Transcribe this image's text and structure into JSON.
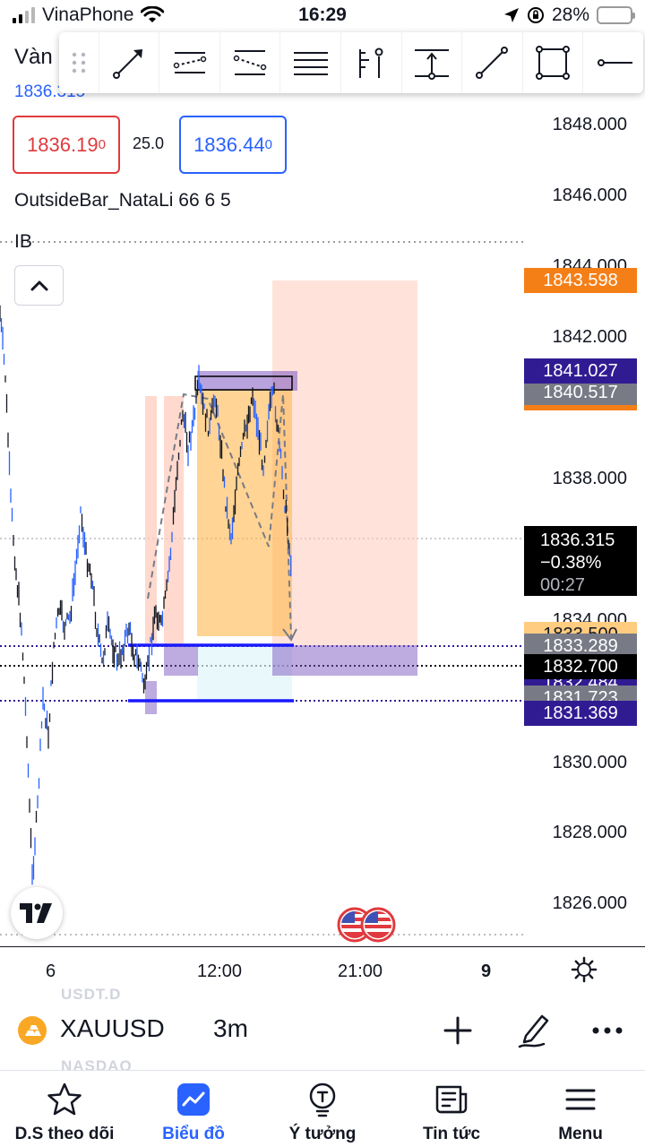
{
  "status_bar": {
    "carrier": "VinaPhone",
    "time": "16:29",
    "battery": "28%"
  },
  "symbol_header": {
    "title": "Vàn",
    "price": "1836.315"
  },
  "drawing_toolbar": {
    "tools": [
      "trend-line-icon",
      "parallel-channel-icon",
      "regression-trend-icon",
      "horizontal-lines-icon",
      "long-position-icon",
      "price-range-icon",
      "line-segment-icon",
      "rectangle-icon",
      "horizontal-ray-icon"
    ]
  },
  "quote": {
    "sell_main": "1836.19",
    "sell_sup": "0",
    "spread": "25.0",
    "buy_main": "1836.44",
    "buy_sup": "0"
  },
  "indicators": {
    "outside_bar": "OutsideBar_NataLi 66 6 5",
    "ib": "IB"
  },
  "price_axis": {
    "ticks": [
      "1848.000",
      "1846.000",
      "1844.000",
      "1842.000",
      "1838.000",
      "1834.000",
      "1830.000",
      "1828.000",
      "1826.000"
    ],
    "tags": {
      "orange_top": "1843.598",
      "indigo_top": "1841.027",
      "gray_top": "1840.517",
      "peach_mid": "1833.500",
      "gray_mid": "1833.289",
      "indigo_mid": "1832.484",
      "black_mid": "1832.700",
      "gray_low": "1831.723",
      "indigo_low": "1831.369"
    },
    "current": {
      "price": "1836.315",
      "change": "−0.38%",
      "countdown": "00:27"
    }
  },
  "time_axis": {
    "labels": [
      "6",
      "12:00",
      "21:00",
      "9"
    ]
  },
  "symbol_bar": {
    "ghost_top": "USDT.D",
    "ghost_bottom": "NASDAQ",
    "symbol": "XAUUSD",
    "interval": "3m"
  },
  "bottom_nav": {
    "items": [
      {
        "label": "D.S theo dõi",
        "icon": "star-icon"
      },
      {
        "label": "Biểu đồ",
        "icon": "chart-icon"
      },
      {
        "label": "Ý tưởng",
        "icon": "lightbulb-icon"
      },
      {
        "label": "Tin tức",
        "icon": "news-icon"
      },
      {
        "label": "Menu",
        "icon": "menu-icon"
      }
    ]
  },
  "colors": {
    "accent": "#2962ff",
    "sell": "#e03a3e",
    "orange": "#f57f17",
    "indigo": "#311b92",
    "candle_up": "#2962ff",
    "candle_down": "#131722"
  }
}
